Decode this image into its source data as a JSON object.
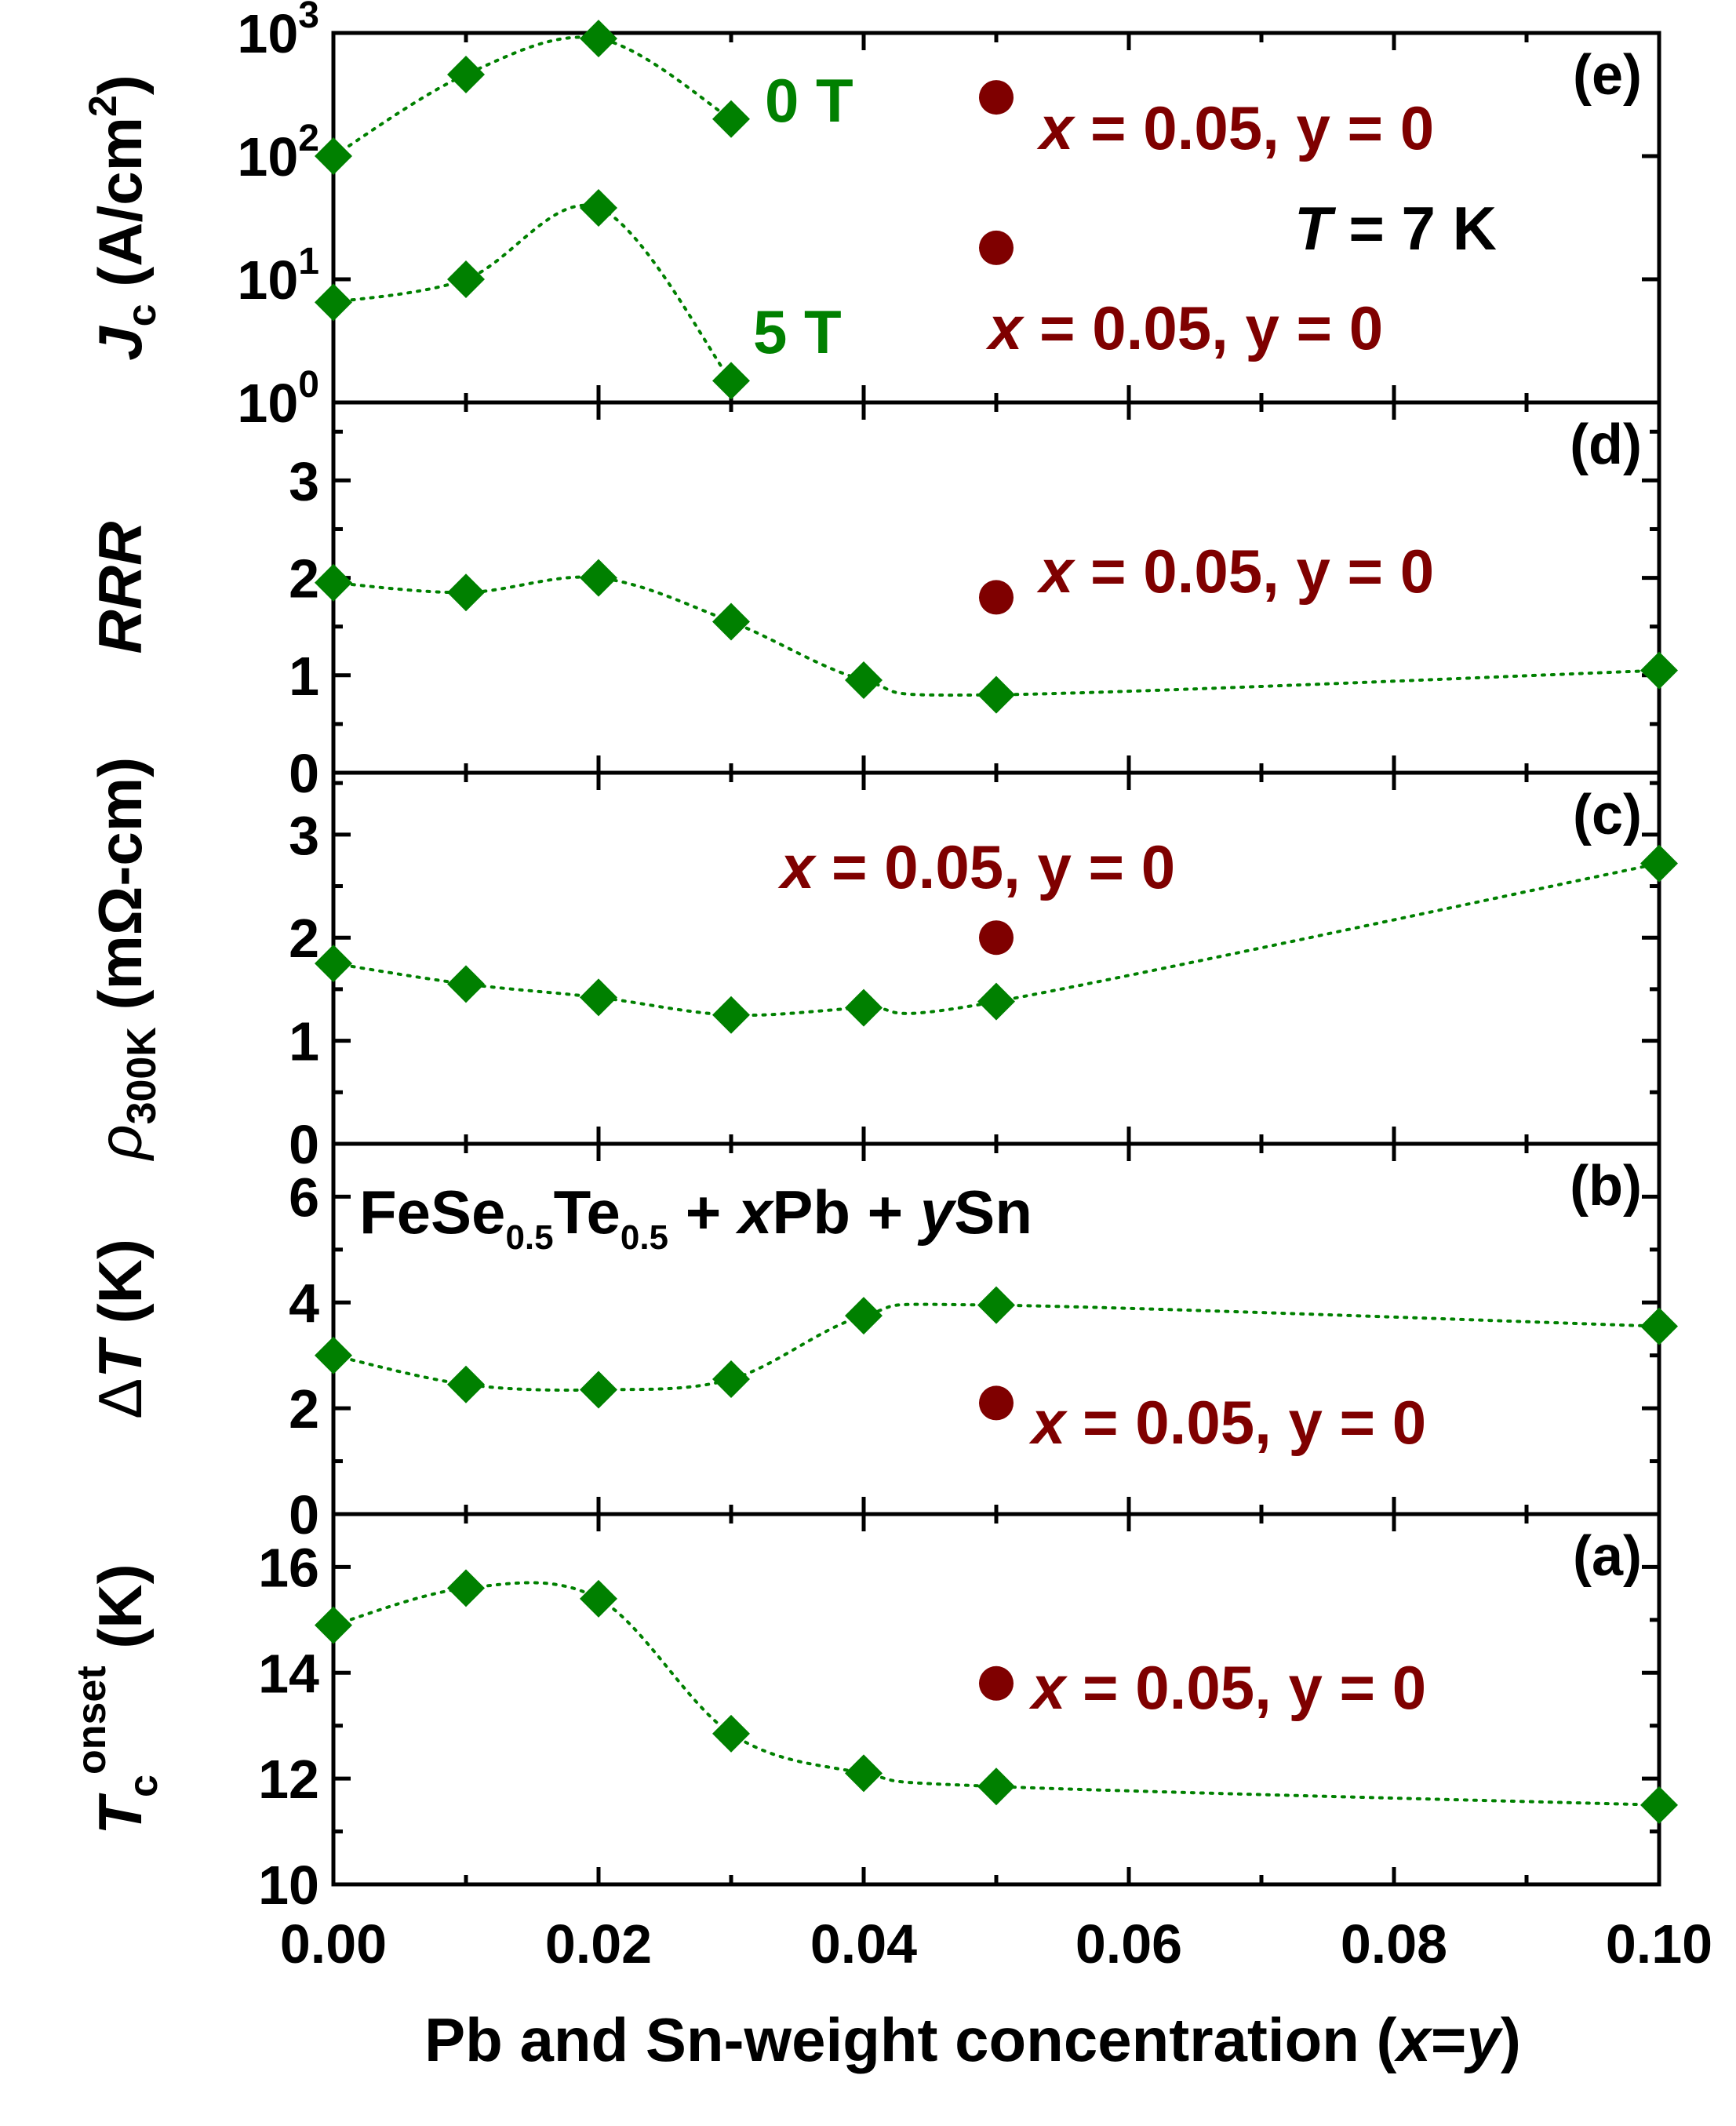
{
  "chart_data": {
    "type": "scatter",
    "x_axis": {
      "label_parts": [
        "Pb and Sn-weight concentration (",
        "x",
        "=",
        "y",
        ")"
      ],
      "range": [
        0,
        0.1
      ],
      "ticks": [
        "0.00",
        "0.02",
        "0.04",
        "0.06",
        "0.08",
        "0.10"
      ],
      "tick_values": [
        0,
        0.02,
        0.04,
        0.06,
        0.08,
        0.1
      ],
      "minor_step": 0.01
    },
    "colors": {
      "series": "#008000",
      "reference": "#7f0000",
      "axes": "#000000"
    },
    "panels": [
      {
        "id": "e",
        "letter": "(e)",
        "scale": "log",
        "ylim": [
          1,
          1000
        ],
        "yticks": [
          1,
          10,
          100,
          1000
        ],
        "ytick_labels": [
          {
            "base": "10",
            "exp": "0"
          },
          {
            "base": "10",
            "exp": "1"
          },
          {
            "base": "10",
            "exp": "2"
          },
          {
            "base": "10",
            "exp": "3"
          }
        ],
        "ylabel": {
          "main": "J",
          "sub": "c",
          "unit_open": " (A/cm",
          "unit_sup": "2",
          "unit_close": ")"
        },
        "series": [
          {
            "name": "0 T",
            "x": [
              0,
              0.01,
              0.02,
              0.03
            ],
            "y": [
              100,
              460,
              900,
              200
            ]
          },
          {
            "name": "5 T",
            "x": [
              0,
              0.01,
              0.02,
              0.03
            ],
            "y": [
              6.5,
              10,
              38,
              1.5
            ]
          }
        ],
        "reference_points": [
          {
            "x": 0.05,
            "y": 300,
            "label": "x = 0.05, y = 0"
          },
          {
            "x": 0.05,
            "y": 18,
            "label": "x = 0.05, y = 0"
          }
        ],
        "annotations": {
          "t_symbol": "T",
          "t_value": " = 7 K"
        }
      },
      {
        "id": "d",
        "letter": "(d)",
        "scale": "linear",
        "ylim": [
          0,
          3.8
        ],
        "yticks": [
          0,
          1,
          2,
          3
        ],
        "ytick_labels": [
          "0",
          "1",
          "2",
          "3"
        ],
        "ylabel": {
          "main": "RRR"
        },
        "series": [
          {
            "name": "RRR",
            "x": [
              0,
              0.01,
              0.02,
              0.03,
              0.04,
              0.05,
              0.1
            ],
            "y": [
              1.95,
              1.85,
              2.0,
              1.55,
              0.95,
              0.8,
              1.05
            ]
          }
        ],
        "reference_points": [
          {
            "x": 0.05,
            "y": 1.8,
            "label": "x = 0.05, y = 0"
          }
        ]
      },
      {
        "id": "c",
        "letter": "(c)",
        "scale": "linear",
        "ylim": [
          0,
          3.6
        ],
        "yticks": [
          0,
          1,
          2,
          3
        ],
        "ytick_labels": [
          "0",
          "1",
          "2",
          "3"
        ],
        "ylabel": {
          "main": "ρ",
          "sub": "300K",
          "unit": " (mΩ-cm)"
        },
        "series": [
          {
            "name": "rho300K",
            "x": [
              0,
              0.01,
              0.02,
              0.03,
              0.04,
              0.05,
              0.1
            ],
            "y": [
              1.75,
              1.55,
              1.42,
              1.25,
              1.32,
              1.38,
              2.72
            ]
          }
        ],
        "reference_points": [
          {
            "x": 0.05,
            "y": 2.0,
            "label": "x = 0.05, y = 0"
          }
        ]
      },
      {
        "id": "b",
        "letter": "(b)",
        "scale": "linear",
        "ylim": [
          0,
          7
        ],
        "yticks": [
          0,
          2,
          4,
          6
        ],
        "ytick_labels": [
          "0",
          "2",
          "4",
          "6"
        ],
        "ylabel": {
          "prefix": "Δ",
          "main": "T",
          "unit": " (K)"
        },
        "series": [
          {
            "name": "dT",
            "x": [
              0,
              0.01,
              0.02,
              0.03,
              0.04,
              0.05,
              0.1
            ],
            "y": [
              3.0,
              2.45,
              2.35,
              2.55,
              3.75,
              3.95,
              3.55
            ]
          }
        ],
        "reference_points": [
          {
            "x": 0.05,
            "y": 2.1,
            "label": "x = 0.05, y = 0"
          }
        ],
        "formula": {
          "pre": "FeSe",
          "sub1": "0.5",
          "mid": "Te",
          "sub2": "0.5",
          "plus1": " + ",
          "x": "x",
          "pb": "Pb + ",
          "y": "y",
          "sn": "Sn"
        }
      },
      {
        "id": "a",
        "letter": "(a)",
        "scale": "linear",
        "ylim": [
          10,
          17
        ],
        "yticks": [
          10,
          12,
          14,
          16
        ],
        "ytick_labels": [
          "10",
          "12",
          "14",
          "16"
        ],
        "ylabel": {
          "main": "T",
          "sub": "c",
          "sup": "onset",
          "unit": " (K)"
        },
        "series": [
          {
            "name": "Tc_onset",
            "x": [
              0,
              0.01,
              0.02,
              0.03,
              0.04,
              0.05,
              0.1
            ],
            "y": [
              14.9,
              15.6,
              15.4,
              12.85,
              12.1,
              11.85,
              11.5
            ]
          }
        ],
        "reference_points": [
          {
            "x": 0.05,
            "y": 13.8,
            "label": "x = 0.05, y = 0"
          }
        ]
      }
    ]
  }
}
